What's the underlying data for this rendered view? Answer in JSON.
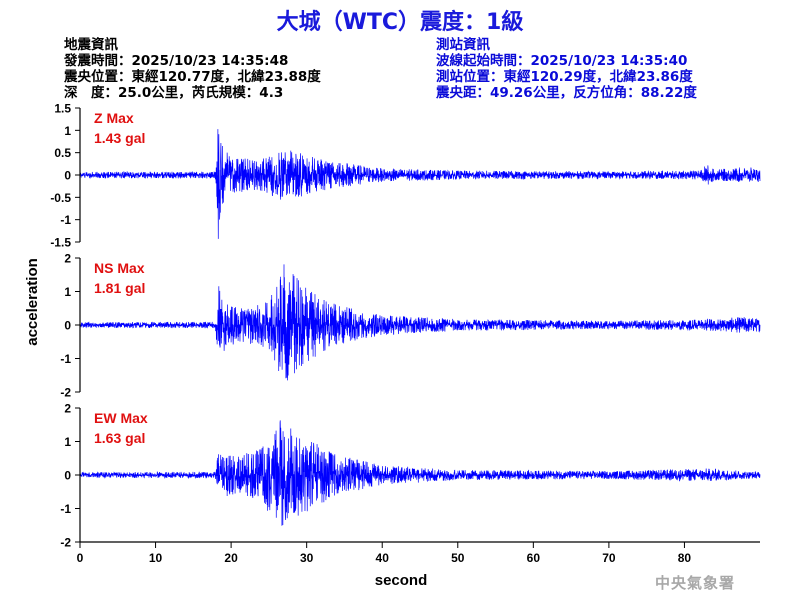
{
  "title": "大城（WTC）震度：1級",
  "earthquake_info": {
    "heading": "地震資訊",
    "origin_time": "發震時間：2025/10/23 14:35:48",
    "epicenter": "震央位置：東經120.77度，北緯23.88度",
    "depth_magnitude": "深　度：25.0公里，芮氏規模：4.3"
  },
  "station_info": {
    "heading": "測站資訊",
    "wave_start": "波線起始時間：2025/10/23 14:35:40",
    "location": "測站位置：東經120.29度，北緯23.86度",
    "distance_azimuth": "震央距：49.26公里，反方位角：88.22度"
  },
  "credit": "中央氣象署",
  "colors": {
    "title": "#1a1adb",
    "trace": "#0000ff",
    "max_label": "#e01010",
    "station_text": "#0a0ad8"
  },
  "chart_data": {
    "type": "line",
    "xlabel": "second",
    "ylabel": "acceleration",
    "xlim": [
      0,
      90
    ],
    "xticks": [
      "0",
      "10",
      "20",
      "30",
      "40",
      "50",
      "60",
      "70",
      "80"
    ],
    "panels": [
      {
        "component": "Z",
        "max_label": "Z Max",
        "max_value": "1.43 gal",
        "ylim": [
          -1.5,
          1.5
        ],
        "yticks": [
          "1.5",
          "1",
          "0.5",
          "0",
          "-0.5",
          "-1",
          "-1.5"
        ],
        "envelope": [
          [
            0,
            0.07
          ],
          [
            17.9,
            0.08
          ],
          [
            18.3,
            1.43
          ],
          [
            18.7,
            0.7
          ],
          [
            20,
            0.4
          ],
          [
            24,
            0.35
          ],
          [
            27,
            0.6
          ],
          [
            30,
            0.45
          ],
          [
            34,
            0.3
          ],
          [
            40,
            0.15
          ],
          [
            50,
            0.1
          ],
          [
            70,
            0.08
          ],
          [
            82,
            0.1
          ],
          [
            83,
            0.25
          ],
          [
            84,
            0.12
          ],
          [
            88,
            0.18
          ],
          [
            90,
            0.15
          ]
        ]
      },
      {
        "component": "NS",
        "max_label": "NS Max",
        "max_value": "1.81 gal",
        "ylim": [
          -2,
          2
        ],
        "yticks": [
          "2",
          "1",
          "0",
          "-1",
          "-2"
        ],
        "envelope": [
          [
            0,
            0.08
          ],
          [
            17.9,
            0.1
          ],
          [
            18.3,
            1.3
          ],
          [
            19,
            0.8
          ],
          [
            21,
            0.5
          ],
          [
            25,
            0.7
          ],
          [
            27,
            1.81
          ],
          [
            30,
            1.1
          ],
          [
            34,
            0.6
          ],
          [
            40,
            0.3
          ],
          [
            50,
            0.18
          ],
          [
            70,
            0.12
          ],
          [
            84,
            0.18
          ],
          [
            88,
            0.25
          ],
          [
            90,
            0.2
          ]
        ]
      },
      {
        "component": "EW",
        "max_label": "EW Max",
        "max_value": "1.63 gal",
        "ylim": [
          -2,
          2
        ],
        "yticks": [
          "2",
          "1",
          "0",
          "-1",
          "-2"
        ],
        "envelope": [
          [
            0,
            0.08
          ],
          [
            17.9,
            0.1
          ],
          [
            18.3,
            0.7
          ],
          [
            21,
            0.55
          ],
          [
            24,
            0.8
          ],
          [
            26.5,
            1.63
          ],
          [
            30,
            1.1
          ],
          [
            34,
            0.6
          ],
          [
            40,
            0.3
          ],
          [
            50,
            0.15
          ],
          [
            70,
            0.12
          ],
          [
            83,
            0.2
          ],
          [
            88,
            0.12
          ],
          [
            90,
            0.1
          ]
        ]
      }
    ]
  }
}
